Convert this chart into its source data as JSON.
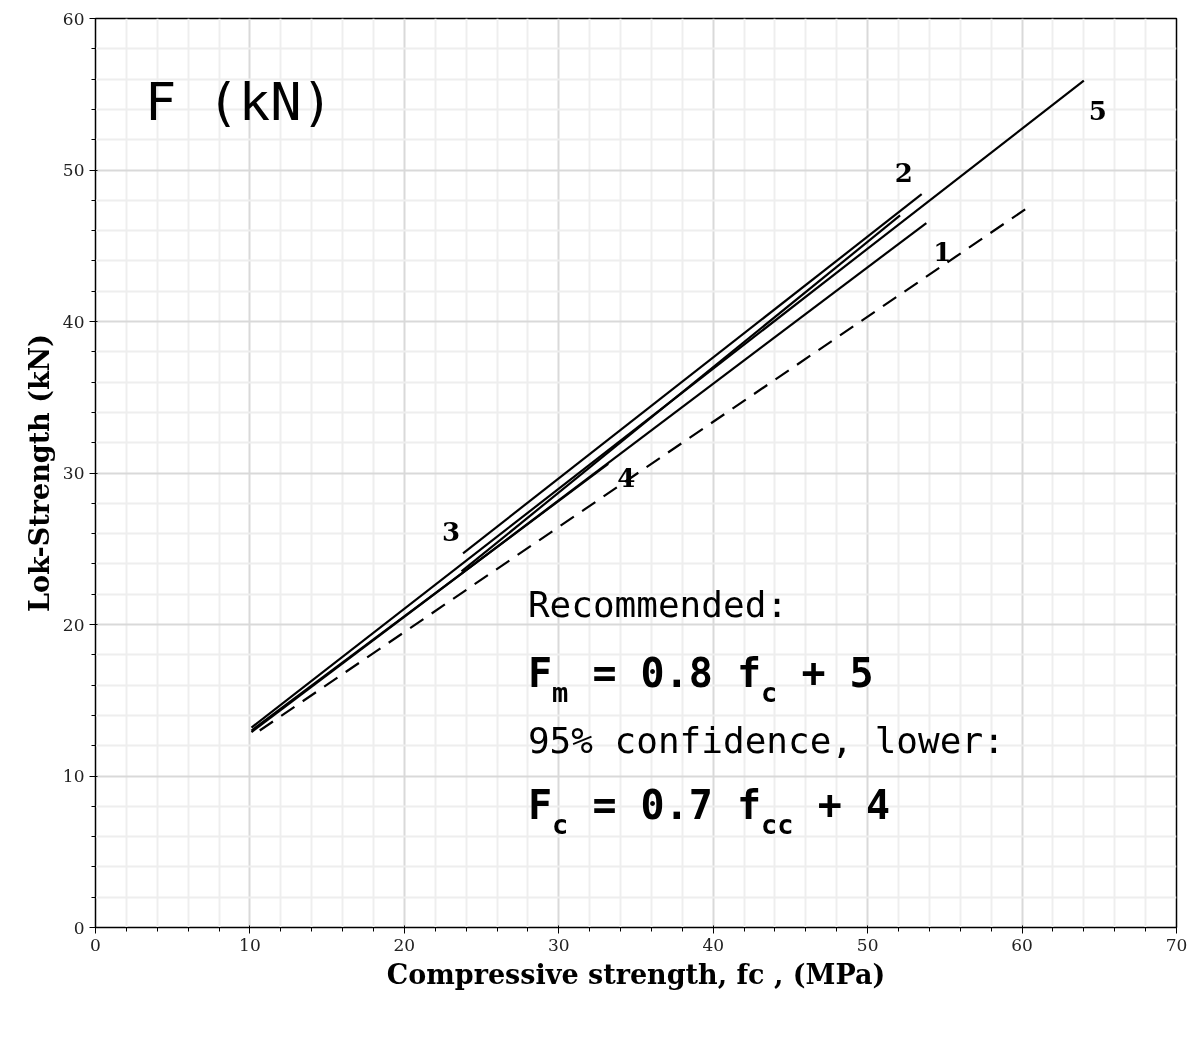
{
  "chart_data": {
    "type": "line",
    "xlabel": "Compressive strength, fc , (MPa)",
    "ylabel": "Lok-Strength (kN)",
    "series": [
      {
        "color": "#000000",
        "x": [
          10.1,
          64.0
        ],
        "values": [
          13.2,
          55.9
        ]
      },
      {
        "color": "#000000",
        "x": [
          23.8,
          53.5
        ],
        "values": [
          24.7,
          48.4
        ]
      },
      {
        "color": "#000000",
        "x": [
          23.7,
          52.1
        ],
        "values": [
          23.5,
          47.0
        ]
      },
      {
        "color": "#000000",
        "x": [
          10.1,
          53.8
        ],
        "values": [
          12.9,
          46.5
        ]
      },
      {
        "color": "#000000",
        "x": [
          10.1,
          33.2
        ],
        "values": [
          13.0,
          30.6
        ]
      },
      {
        "color": "#000000",
        "x": [
          10.2,
          60.2
        ],
        "values": [
          12.7,
          47.4
        ],
        "line_style": "dashed"
      }
    ],
    "xlim": [
      0,
      70
    ],
    "ylim": [
      0,
      60
    ],
    "xticks": [
      0,
      10,
      20,
      30,
      40,
      50,
      60,
      70
    ],
    "yticks": [
      0,
      10,
      20,
      30,
      40,
      50,
      60
    ],
    "grid": true,
    "line_style": "solid",
    "annotations": [
      "F (kN)",
      "Recommended:",
      "F$_{m}$ = 0.8 f$_{c}$ + 5",
      "95% confidence, lower:",
      "F$_{c}$ = 0.7 f$_{cc}$ + 4",
      {
        "text": "1",
        "x": 53.8,
        "y": 46.5
      },
      {
        "text": "2",
        "x": 53.5,
        "y": 48.4
      },
      {
        "text": "3",
        "x": 23.8,
        "y": 24.7
      },
      {
        "text": "4",
        "x": 33.2,
        "y": 30.6
      },
      {
        "text": "5",
        "x": 64.0,
        "y": 55.9
      }
    ]
  }
}
